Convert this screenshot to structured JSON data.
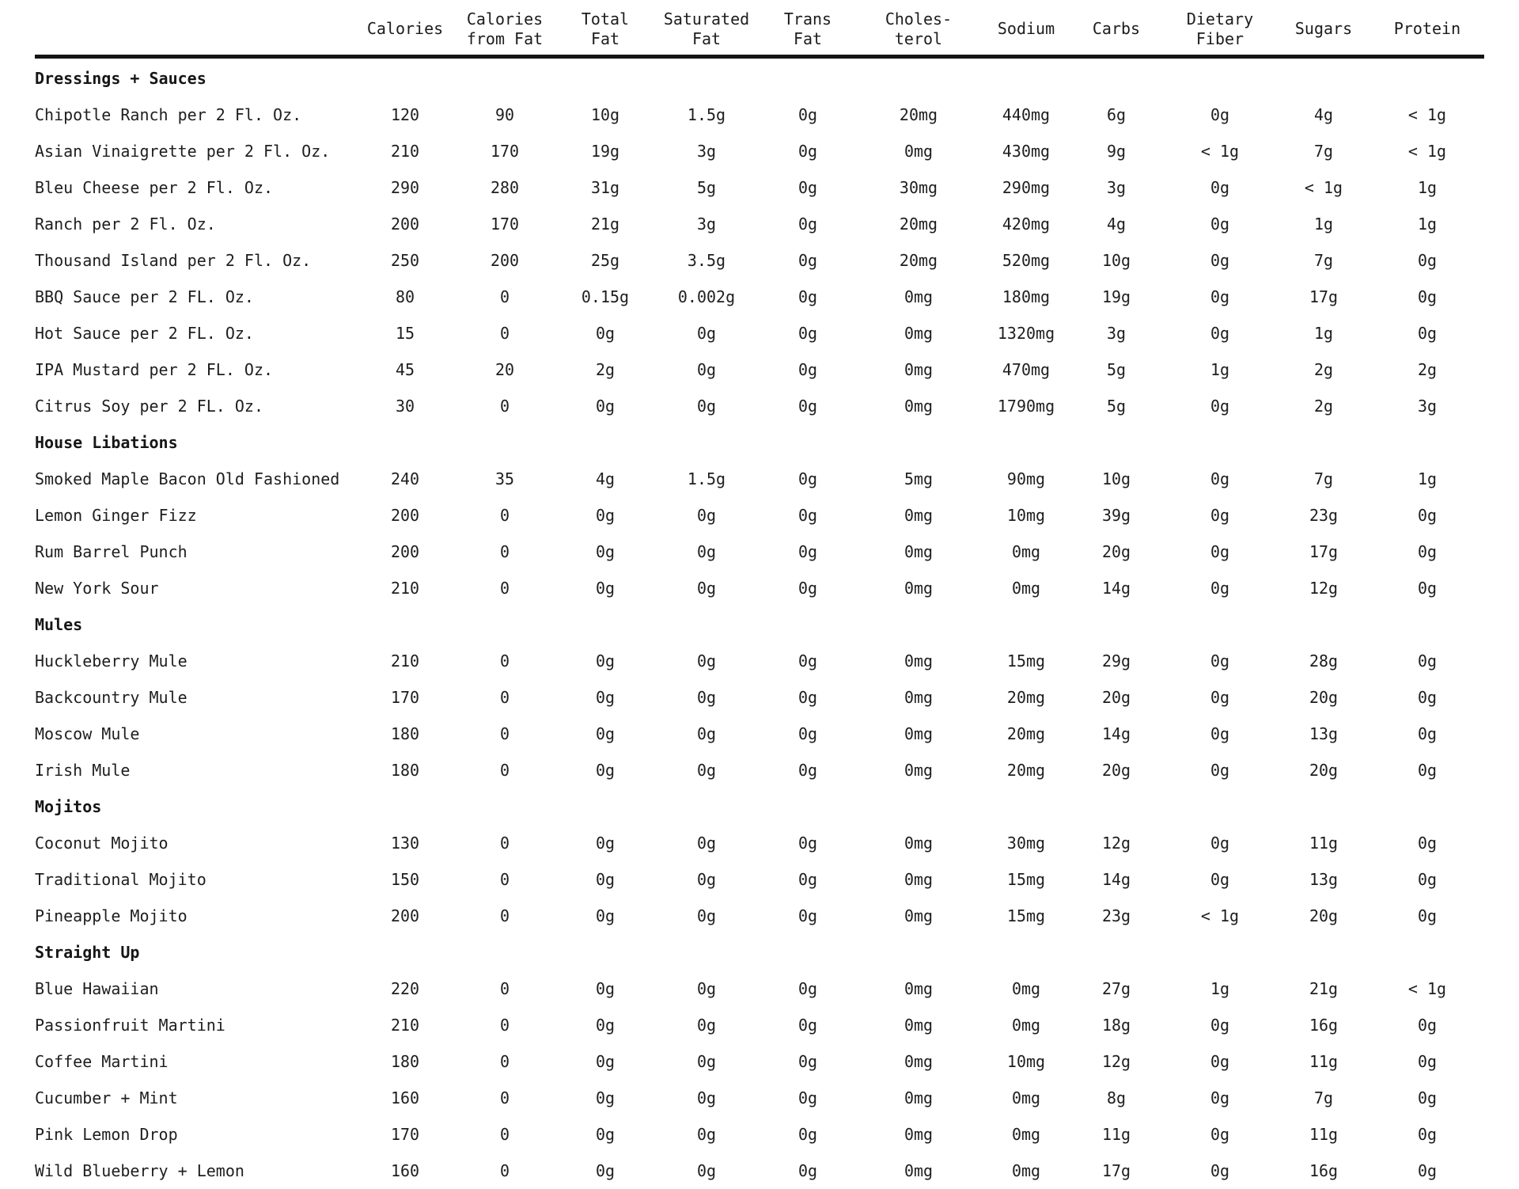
{
  "table": {
    "columns": [
      "Calories",
      "Calories\nfrom Fat",
      "Total\nFat",
      "Saturated\nFat",
      "Trans\nFat",
      "Choles-\nterol",
      "Sodium",
      "Carbs",
      "Dietary\nFiber",
      "Sugars",
      "Protein"
    ],
    "sections": [
      {
        "title": "Dressings + Sauces",
        "rows": [
          {
            "name": "Chipotle Ranch per 2 Fl. Oz.",
            "values": [
              "120",
              "90",
              "10g",
              "1.5g",
              "0g",
              "20mg",
              "440mg",
              "6g",
              "0g",
              "4g",
              "< 1g"
            ]
          },
          {
            "name": "Asian Vinaigrette per 2 Fl. Oz.",
            "values": [
              "210",
              "170",
              "19g",
              "3g",
              "0g",
              "0mg",
              "430mg",
              "9g",
              "< 1g",
              "7g",
              "< 1g"
            ]
          },
          {
            "name": "Bleu Cheese per 2 Fl. Oz.",
            "values": [
              "290",
              "280",
              "31g",
              "5g",
              "0g",
              "30mg",
              "290mg",
              "3g",
              "0g",
              "< 1g",
              "1g"
            ]
          },
          {
            "name": "Ranch per 2 Fl. Oz.",
            "values": [
              "200",
              "170",
              "21g",
              "3g",
              "0g",
              "20mg",
              "420mg",
              "4g",
              "0g",
              "1g",
              "1g"
            ]
          },
          {
            "name": "Thousand Island per 2 Fl. Oz.",
            "values": [
              "250",
              "200",
              "25g",
              "3.5g",
              "0g",
              "20mg",
              "520mg",
              "10g",
              "0g",
              "7g",
              "0g"
            ]
          },
          {
            "name": "BBQ Sauce per 2 FL. Oz.",
            "values": [
              "80",
              "0",
              "0.15g",
              "0.002g",
              "0g",
              "0mg",
              "180mg",
              "19g",
              "0g",
              "17g",
              "0g"
            ]
          },
          {
            "name": "Hot Sauce per 2 FL. Oz.",
            "values": [
              "15",
              "0",
              "0g",
              "0g",
              "0g",
              "0mg",
              "1320mg",
              "3g",
              "0g",
              "1g",
              "0g"
            ]
          },
          {
            "name": "IPA Mustard per 2 FL. Oz.",
            "values": [
              "45",
              "20",
              "2g",
              "0g",
              "0g",
              "0mg",
              "470mg",
              "5g",
              "1g",
              "2g",
              "2g"
            ]
          },
          {
            "name": "Citrus Soy per 2 FL. Oz.",
            "values": [
              "30",
              "0",
              "0g",
              "0g",
              "0g",
              "0mg",
              "1790mg",
              "5g",
              "0g",
              "2g",
              "3g"
            ]
          }
        ]
      },
      {
        "title": "House Libations",
        "rows": [
          {
            "name": "Smoked Maple Bacon Old Fashioned",
            "values": [
              "240",
              "35",
              "4g",
              "1.5g",
              "0g",
              "5mg",
              "90mg",
              "10g",
              "0g",
              "7g",
              "1g"
            ]
          },
          {
            "name": "Lemon Ginger Fizz",
            "values": [
              "200",
              "0",
              "0g",
              "0g",
              "0g",
              "0mg",
              "10mg",
              "39g",
              "0g",
              "23g",
              "0g"
            ]
          },
          {
            "name": "Rum Barrel Punch",
            "values": [
              "200",
              "0",
              "0g",
              "0g",
              "0g",
              "0mg",
              "0mg",
              "20g",
              "0g",
              "17g",
              "0g"
            ]
          },
          {
            "name": "New York Sour",
            "values": [
              "210",
              "0",
              "0g",
              "0g",
              "0g",
              "0mg",
              "0mg",
              "14g",
              "0g",
              "12g",
              "0g"
            ]
          }
        ]
      },
      {
        "title": "Mules",
        "rows": [
          {
            "name": "Huckleberry Mule",
            "values": [
              "210",
              "0",
              "0g",
              "0g",
              "0g",
              "0mg",
              "15mg",
              "29g",
              "0g",
              "28g",
              "0g"
            ]
          },
          {
            "name": "Backcountry Mule",
            "values": [
              "170",
              "0",
              "0g",
              "0g",
              "0g",
              "0mg",
              "20mg",
              "20g",
              "0g",
              "20g",
              "0g"
            ]
          },
          {
            "name": "Moscow Mule",
            "values": [
              "180",
              "0",
              "0g",
              "0g",
              "0g",
              "0mg",
              "20mg",
              "14g",
              "0g",
              "13g",
              "0g"
            ]
          },
          {
            "name": "Irish Mule",
            "values": [
              "180",
              "0",
              "0g",
              "0g",
              "0g",
              "0mg",
              "20mg",
              "20g",
              "0g",
              "20g",
              "0g"
            ]
          }
        ]
      },
      {
        "title": "Mojitos",
        "rows": [
          {
            "name": "Coconut Mojito",
            "values": [
              "130",
              "0",
              "0g",
              "0g",
              "0g",
              "0mg",
              "30mg",
              "12g",
              "0g",
              "11g",
              "0g"
            ]
          },
          {
            "name": "Traditional Mojito",
            "values": [
              "150",
              "0",
              "0g",
              "0g",
              "0g",
              "0mg",
              "15mg",
              "14g",
              "0g",
              "13g",
              "0g"
            ]
          },
          {
            "name": "Pineapple Mojito",
            "values": [
              "200",
              "0",
              "0g",
              "0g",
              "0g",
              "0mg",
              "15mg",
              "23g",
              "< 1g",
              "20g",
              "0g"
            ]
          }
        ]
      },
      {
        "title": "Straight Up",
        "rows": [
          {
            "name": "Blue Hawaiian",
            "values": [
              "220",
              "0",
              "0g",
              "0g",
              "0g",
              "0mg",
              "0mg",
              "27g",
              "1g",
              "21g",
              "< 1g"
            ]
          },
          {
            "name": "Passionfruit Martini",
            "values": [
              "210",
              "0",
              "0g",
              "0g",
              "0g",
              "0mg",
              "0mg",
              "18g",
              "0g",
              "16g",
              "0g"
            ]
          },
          {
            "name": "Coffee Martini",
            "values": [
              "180",
              "0",
              "0g",
              "0g",
              "0g",
              "0mg",
              "10mg",
              "12g",
              "0g",
              "11g",
              "0g"
            ]
          },
          {
            "name": "Cucumber + Mint",
            "values": [
              "160",
              "0",
              "0g",
              "0g",
              "0g",
              "0mg",
              "0mg",
              "8g",
              "0g",
              "7g",
              "0g"
            ]
          },
          {
            "name": "Pink Lemon Drop",
            "values": [
              "170",
              "0",
              "0g",
              "0g",
              "0g",
              "0mg",
              "0mg",
              "11g",
              "0g",
              "11g",
              "0g"
            ]
          },
          {
            "name": "Wild Blueberry + Lemon",
            "values": [
              "160",
              "0",
              "0g",
              "0g",
              "0g",
              "0mg",
              "0mg",
              "17g",
              "0g",
              "16g",
              "0g"
            ]
          }
        ]
      }
    ]
  }
}
